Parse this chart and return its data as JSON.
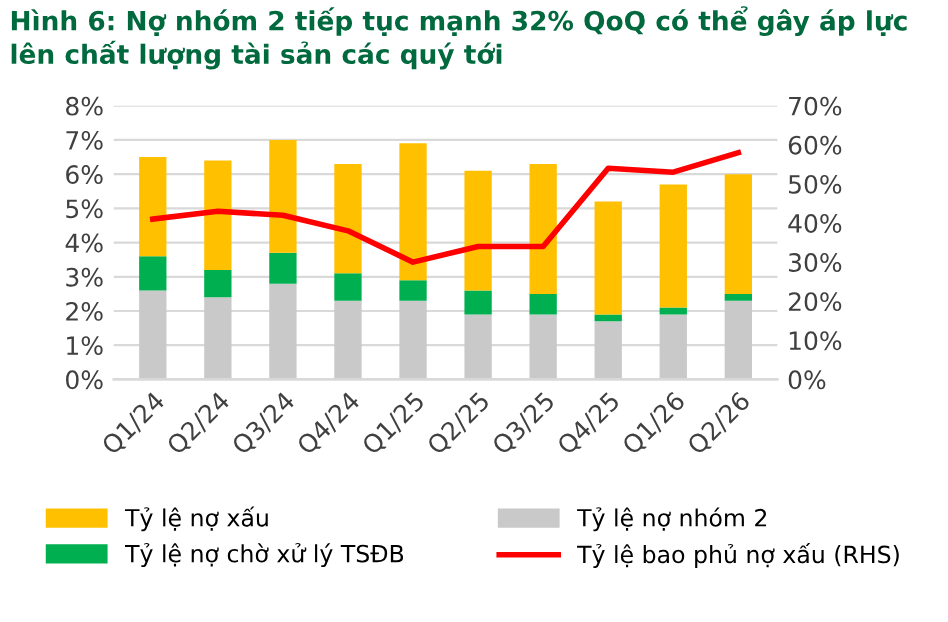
{
  "chart_data": {
    "type": "bar",
    "stacked": true,
    "title": "Hình 6: Nợ nhóm 2 tiếp tục mạnh 32% QoQ có thể gây áp lực lên chất lượng tài sản các quý tới",
    "categories": [
      "Q1/24",
      "Q2/24",
      "Q3/24",
      "Q4/24",
      "Q1/25",
      "Q2/25",
      "Q3/25",
      "Q4/25",
      "Q1/26",
      "Q2/26"
    ],
    "series": [
      {
        "name": "Tỷ lệ nợ nhóm 2",
        "color": "#c9c9c9",
        "values": [
          2.6,
          2.4,
          2.8,
          2.3,
          2.3,
          1.9,
          1.9,
          1.7,
          1.9,
          2.3
        ]
      },
      {
        "name": "Tỷ lệ nợ chờ xử lý TSĐB",
        "color": "#00b050",
        "values": [
          1.0,
          0.8,
          0.9,
          0.8,
          0.6,
          0.7,
          0.6,
          0.2,
          0.2,
          0.2
        ]
      },
      {
        "name": "Tỷ lệ nợ xấu",
        "color": "#ffc000",
        "values": [
          2.9,
          3.2,
          3.3,
          3.2,
          4.0,
          3.5,
          3.8,
          3.3,
          3.6,
          3.5
        ]
      },
      {
        "name": "Tỷ lệ bao phủ nợ xấu (RHS)",
        "type": "line",
        "axis": "y2",
        "color": "#ff0000",
        "values": [
          41,
          43,
          42,
          38,
          30,
          34,
          34,
          54,
          53,
          58
        ]
      }
    ],
    "ylim": [
      0,
      8
    ],
    "yticks": [
      {
        "value": 0,
        "label": "0%"
      },
      {
        "value": 1,
        "label": "1%"
      },
      {
        "value": 2,
        "label": "2%"
      },
      {
        "value": 3,
        "label": "3%"
      },
      {
        "value": 4,
        "label": "4%"
      },
      {
        "value": 5,
        "label": "5%"
      },
      {
        "value": 6,
        "label": "6%"
      },
      {
        "value": 7,
        "label": "7%"
      },
      {
        "value": 8,
        "label": "8%"
      }
    ],
    "y2lim": [
      0,
      70
    ],
    "y2ticks": [
      {
        "value": 0,
        "label": "0%"
      },
      {
        "value": 10,
        "label": "10%"
      },
      {
        "value": 20,
        "label": "20%"
      },
      {
        "value": 30,
        "label": "30%"
      },
      {
        "value": 40,
        "label": "40%"
      },
      {
        "value": 50,
        "label": "50%"
      },
      {
        "value": 60,
        "label": "60%"
      },
      {
        "value": 70,
        "label": "70%"
      }
    ],
    "grid": "y",
    "legend": "bottom"
  }
}
